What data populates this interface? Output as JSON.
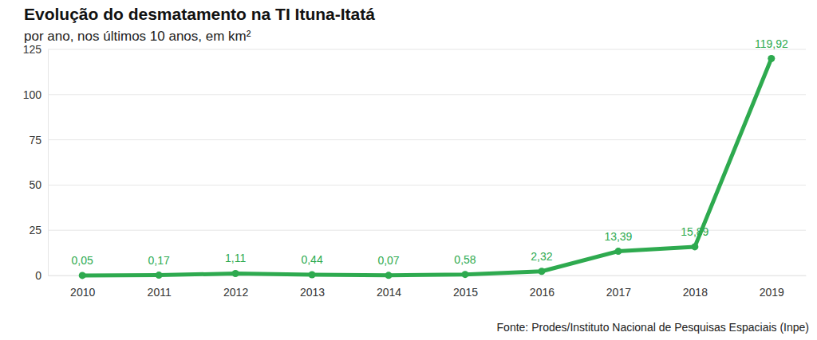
{
  "chart_data": {
    "type": "line",
    "title": "Evolução do desmatamento na TI Ituna-Itatá",
    "subtitle": "por ano, nos últimos 10 anos, em km²",
    "source": "Fonte: Prodes/Instituto Nacional de Pesquisas Espaciais (Inpe)",
    "categories": [
      "2010",
      "2011",
      "2012",
      "2013",
      "2014",
      "2015",
      "2016",
      "2017",
      "2018",
      "2019"
    ],
    "values": [
      0.05,
      0.17,
      1.11,
      0.44,
      0.07,
      0.58,
      2.32,
      13.39,
      15.89,
      119.92
    ],
    "value_labels": [
      "0,05",
      "0,17",
      "1,11",
      "0,44",
      "0,07",
      "0,58",
      "2,32",
      "13,39",
      "15,89",
      "119,92"
    ],
    "color": "#2eaa4f",
    "ylim": [
      0,
      125
    ],
    "yticks": [
      0,
      25,
      50,
      75,
      100,
      125
    ],
    "grid": true,
    "data_labels": true,
    "marker": "circle"
  }
}
